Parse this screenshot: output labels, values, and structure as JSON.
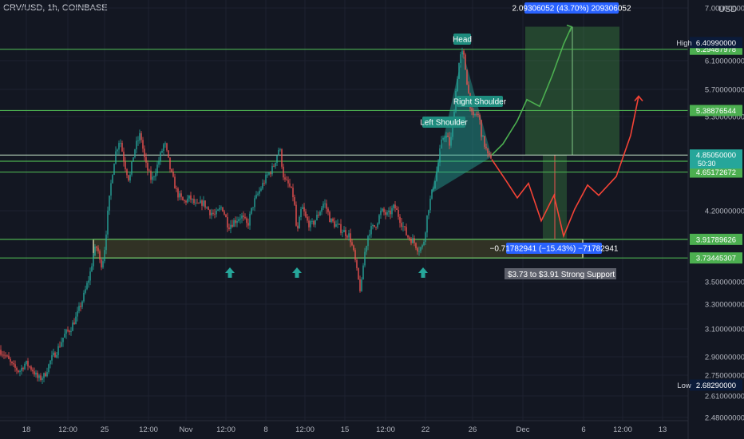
{
  "symbol": "CRV/USD, 1h, COINBASE",
  "currency": "USD",
  "chart_data": {
    "type": "candlestick",
    "x_ticks": [
      "18",
      "12:00",
      "25",
      "12:00",
      "Nov",
      "12:00",
      "8",
      "12:00",
      "15",
      "12:00",
      "22",
      "26",
      "Dec",
      "6",
      "12:00",
      "13"
    ],
    "y_ticks": [
      7.0,
      6.1,
      5.7,
      5.3,
      4.2,
      3.5,
      3.3,
      3.1,
      2.9,
      2.75,
      2.61,
      2.48
    ],
    "y_tick_labels": [
      "7.00000000",
      "6.10000000",
      "5.70000000",
      "5.30000000",
      "4.20000000",
      "3.50000000",
      "3.30000000",
      "3.10000000",
      "2.90000000",
      "2.75000000",
      "2.61000000",
      "2.48000000"
    ],
    "price_path": [
      [
        0,
        2.95
      ],
      [
        8,
        2.9
      ],
      [
        16,
        2.82
      ],
      [
        24,
        2.78
      ],
      [
        32,
        2.85
      ],
      [
        40,
        2.8
      ],
      [
        48,
        2.72
      ],
      [
        56,
        2.75
      ],
      [
        64,
        2.88
      ],
      [
        72,
        2.95
      ],
      [
        80,
        3.05
      ],
      [
        88,
        3.1
      ],
      [
        96,
        3.2
      ],
      [
        104,
        3.35
      ],
      [
        112,
        3.55
      ],
      [
        118,
        3.8
      ],
      [
        122,
        3.85
      ],
      [
        126,
        3.65
      ],
      [
        130,
        3.75
      ],
      [
        136,
        4.25
      ],
      [
        140,
        4.6
      ],
      [
        144,
        4.85
      ],
      [
        150,
        5.05
      ],
      [
        156,
        4.75
      ],
      [
        162,
        4.55
      ],
      [
        168,
        4.9
      ],
      [
        176,
        5.1
      ],
      [
        182,
        4.75
      ],
      [
        190,
        4.55
      ],
      [
        198,
        4.75
      ],
      [
        206,
        5.0
      ],
      [
        214,
        4.65
      ],
      [
        222,
        4.4
      ],
      [
        230,
        4.3
      ],
      [
        238,
        4.35
      ],
      [
        246,
        4.25
      ],
      [
        254,
        4.3
      ],
      [
        262,
        4.2
      ],
      [
        270,
        4.15
      ],
      [
        278,
        4.25
      ],
      [
        286,
        4.05
      ],
      [
        294,
        4.1
      ],
      [
        302,
        4.15
      ],
      [
        310,
        4.05
      ],
      [
        318,
        4.3
      ],
      [
        326,
        4.45
      ],
      [
        334,
        4.6
      ],
      [
        342,
        4.7
      ],
      [
        350,
        4.95
      ],
      [
        356,
        4.55
      ],
      [
        362,
        4.5
      ],
      [
        368,
        4.35
      ],
      [
        372,
        3.95
      ],
      [
        378,
        4.25
      ],
      [
        384,
        4.1
      ],
      [
        390,
        4.05
      ],
      [
        398,
        4.15
      ],
      [
        406,
        4.3
      ],
      [
        414,
        4.1
      ],
      [
        422,
        4.05
      ],
      [
        430,
        4.0
      ],
      [
        438,
        3.95
      ],
      [
        444,
        3.75
      ],
      [
        448,
        3.55
      ],
      [
        452,
        3.4
      ],
      [
        456,
        3.75
      ],
      [
        462,
        4.0
      ],
      [
        470,
        4.05
      ],
      [
        478,
        4.2
      ],
      [
        486,
        4.15
      ],
      [
        494,
        4.25
      ],
      [
        502,
        4.1
      ],
      [
        510,
        3.95
      ],
      [
        518,
        3.9
      ],
      [
        524,
        3.82
      ],
      [
        530,
        3.85
      ],
      [
        536,
        4.2
      ],
      [
        542,
        4.45
      ],
      [
        548,
        4.7
      ],
      [
        552,
        4.95
      ],
      [
        556,
        5.1
      ],
      [
        560,
        5.05
      ],
      [
        564,
        4.95
      ],
      [
        568,
        5.3
      ],
      [
        572,
        5.8
      ],
      [
        576,
        6.15
      ],
      [
        580,
        6.25
      ],
      [
        584,
        5.9
      ],
      [
        588,
        5.55
      ],
      [
        592,
        5.25
      ],
      [
        596,
        5.35
      ],
      [
        600,
        5.3
      ],
      [
        604,
        5.05
      ],
      [
        608,
        4.95
      ],
      [
        612,
        4.8
      ],
      [
        616,
        4.85
      ]
    ],
    "levels": [
      {
        "label": "6.29487978",
        "price": 6.29487978
      },
      {
        "label": "5.38876544",
        "price": 5.38876544
      },
      {
        "label": "4.77762400",
        "price": 4.777624
      },
      {
        "label": "4.65172672",
        "price": 4.65172672
      },
      {
        "label": "3.91789626",
        "price": 3.91789626
      },
      {
        "label": "3.73445307",
        "price": 3.73445307
      }
    ],
    "high": {
      "label": "High",
      "value": "6.40990000",
      "price": 6.4099
    },
    "low": {
      "label": "Low",
      "value": "2.68290000",
      "price": 2.6829
    },
    "last_price": {
      "value": "4.85050000",
      "countdown": "50:30",
      "price": 4.8505
    },
    "annotations": {
      "head": "Head",
      "left_shoulder": "Left Shoulder",
      "right_shoulder": "Right Shoulder",
      "support": "$3.73 to $3.91 Strong Support",
      "long_measure": "2.09306052 (43.70%) 209306052",
      "short_measure": "−0.71782941 (−15.43%) −71782941"
    },
    "bull_path": [
      [
        616,
        4.85
      ],
      [
        630,
        4.98
      ],
      [
        648,
        5.25
      ],
      [
        660,
        5.55
      ],
      [
        676,
        5.45
      ],
      [
        692,
        5.9
      ],
      [
        706,
        6.38
      ],
      [
        716,
        6.68
      ]
    ],
    "bear_path": [
      [
        616,
        4.8
      ],
      [
        634,
        4.55
      ],
      [
        648,
        4.35
      ],
      [
        662,
        4.52
      ],
      [
        678,
        4.1
      ],
      [
        694,
        4.38
      ],
      [
        706,
        3.95
      ],
      [
        720,
        4.22
      ],
      [
        736,
        4.5
      ],
      [
        750,
        4.38
      ],
      [
        772,
        4.6
      ],
      [
        790,
        5.08
      ],
      [
        800,
        5.6
      ]
    ]
  },
  "colors": {
    "background": "#131722",
    "up": "#26a69a",
    "down": "#ef5350",
    "level": "#4caf50",
    "bull": "#4caf50",
    "bear": "#f44336",
    "measure": "#2962ff"
  }
}
